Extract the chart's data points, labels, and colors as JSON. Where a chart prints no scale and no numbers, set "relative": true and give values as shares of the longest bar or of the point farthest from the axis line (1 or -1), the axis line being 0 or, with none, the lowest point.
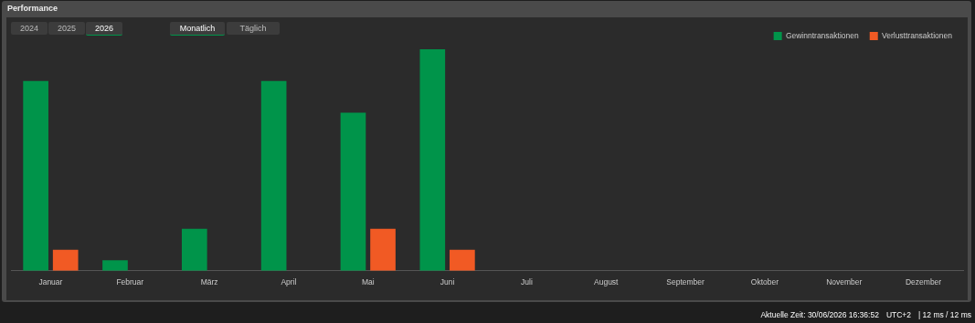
{
  "chart_data": {
    "type": "bar",
    "title": "Performance",
    "relative": true,
    "categories": [
      "Januar",
      "Februar",
      "März",
      "April",
      "Mai",
      "Juni",
      "Juli",
      "August",
      "September",
      "Oktober",
      "November",
      "Dezember"
    ],
    "series": [
      {
        "name": "Gewinntransaktionen",
        "color": "#00944a",
        "values": [
          0.857,
          0.048,
          0.19,
          0.857,
          0.714,
          1,
          null,
          null,
          null,
          null,
          null,
          null
        ]
      },
      {
        "name": "Verlusttransaktionen",
        "color": "#f15a24",
        "values": [
          0.095,
          null,
          null,
          null,
          0.19,
          0.095,
          null,
          null,
          null,
          null,
          null,
          null
        ]
      }
    ],
    "legend": "top right",
    "annotations": [
      "2024",
      "2025",
      "2026",
      "Monatlich",
      "Täglich",
      "Aktuelle Zeit: 30/06/2026 16:36:52",
      "UTC+2",
      "| 12 ms / 12 ms"
    ]
  }
}
